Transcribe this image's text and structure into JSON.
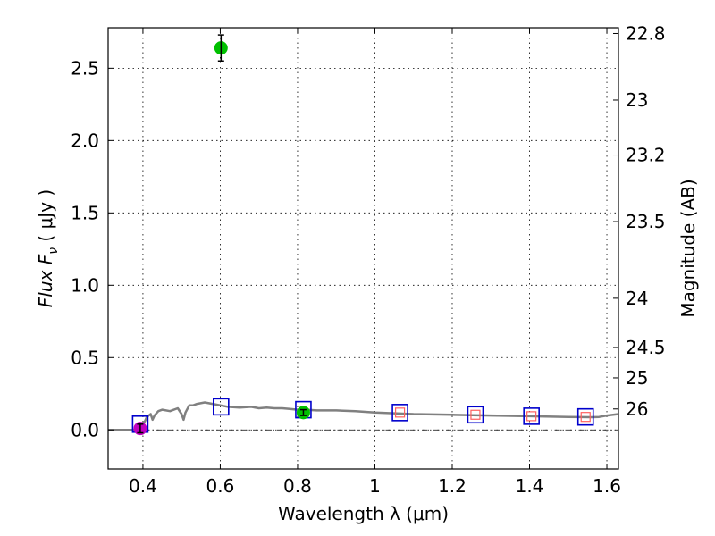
{
  "chart_data": {
    "type": "scatter",
    "xlabel": "Wavelength  λ (μm)",
    "ylabel": "Flux  F",
    "ylabel_sub": "ν",
    "ylabel_unit": "  ( μJy )",
    "y2label": "Magnitude (AB)",
    "xlim": [
      0.31,
      1.63
    ],
    "ylim": [
      -0.27,
      2.78
    ],
    "x_ticks": [
      0.4,
      0.6,
      0.8,
      1.0,
      1.2,
      1.4,
      1.6
    ],
    "x_tick_labels": [
      "0.4",
      "0.6",
      "0.8",
      "1",
      "1.2",
      "1.4",
      "1.6"
    ],
    "y_ticks": [
      0.0,
      0.5,
      1.0,
      1.5,
      2.0,
      2.5
    ],
    "y_tick_labels": [
      "0.0",
      "0.5",
      "1.0",
      "1.5",
      "2.0",
      "2.5"
    ],
    "y2_ticks": [
      {
        "label": "22.8",
        "flux": 2.74
      },
      {
        "label": "23",
        "flux": 2.28
      },
      {
        "label": "23.2",
        "flux": 1.9
      },
      {
        "label": "23.5",
        "flux": 1.44
      },
      {
        "label": "24",
        "flux": 0.91
      },
      {
        "label": "24.5",
        "flux": 0.57
      },
      {
        "label": "25",
        "flux": 0.36
      },
      {
        "label": "26",
        "flux": 0.145
      }
    ],
    "grid": true,
    "template_spectrum": {
      "color": "#808080",
      "x": [
        0.31,
        0.38,
        0.39,
        0.395,
        0.4,
        0.405,
        0.41,
        0.42,
        0.425,
        0.43,
        0.44,
        0.45,
        0.47,
        0.49,
        0.5,
        0.505,
        0.51,
        0.52,
        0.53,
        0.54,
        0.56,
        0.58,
        0.6,
        0.62,
        0.65,
        0.68,
        0.7,
        0.72,
        0.74,
        0.76,
        0.78,
        0.8,
        0.82,
        0.85,
        0.9,
        0.95,
        1.0,
        1.05,
        1.1,
        1.2,
        1.3,
        1.4,
        1.5,
        1.56,
        1.58,
        1.6,
        1.63
      ],
      "y": [
        0.0,
        0.0,
        0.005,
        0.02,
        0.04,
        0.06,
        0.09,
        0.11,
        0.07,
        0.1,
        0.13,
        0.14,
        0.13,
        0.15,
        0.11,
        0.07,
        0.12,
        0.17,
        0.17,
        0.18,
        0.19,
        0.18,
        0.17,
        0.16,
        0.155,
        0.16,
        0.15,
        0.155,
        0.15,
        0.15,
        0.145,
        0.14,
        0.14,
        0.135,
        0.135,
        0.13,
        0.12,
        0.115,
        0.11,
        0.105,
        0.1,
        0.095,
        0.09,
        0.088,
        0.09,
        0.1,
        0.11
      ]
    },
    "detections": [
      {
        "x": 0.393,
        "y": 0.01,
        "err": 0.03,
        "color": "#c000c0"
      },
      {
        "x": 0.602,
        "y": 2.64,
        "err": 0.09,
        "color": "#00c000"
      },
      {
        "x": 0.815,
        "y": 0.12,
        "err": 0.02,
        "color": "#00c000"
      }
    ],
    "model_photometry": {
      "color": "#0000cc",
      "x": [
        0.393,
        0.602,
        0.815,
        1.065,
        1.26,
        1.405,
        1.545
      ],
      "y": [
        0.04,
        0.16,
        0.14,
        0.12,
        0.105,
        0.095,
        0.09
      ]
    },
    "upper_limits": {
      "color": "#ff6060",
      "x": [
        1.065,
        1.26,
        1.405,
        1.545
      ],
      "y": [
        0.12,
        0.105,
        0.095,
        0.09
      ]
    }
  }
}
